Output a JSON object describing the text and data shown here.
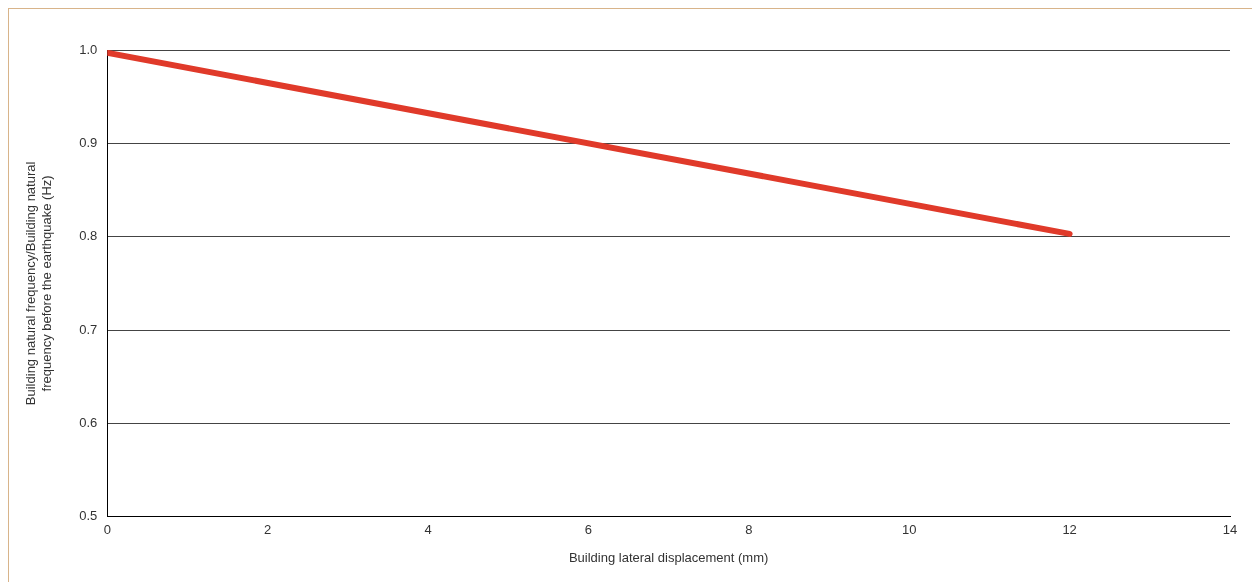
{
  "chart_data": {
    "type": "line",
    "xlabel": "Building lateral displacement (mm)",
    "ylabel": "Building natural frequency/Building natural frequency before the earthquake (Hz)",
    "x": [
      0,
      12
    ],
    "series": [
      {
        "color": "#e03a2a",
        "values": [
          0.997,
          0.803
        ]
      }
    ],
    "xlim": [
      0,
      14
    ],
    "xticks": [
      0,
      2,
      4,
      6,
      8,
      10,
      12,
      14
    ],
    "ylim": [
      0.5,
      1.0
    ],
    "yticks": [
      {
        "value": 0.5,
        "label": "0.5"
      },
      {
        "value": 0.6,
        "label": "0.6"
      },
      {
        "value": 0.7,
        "label": "0.7"
      },
      {
        "value": 0.8,
        "label": "0.8"
      },
      {
        "value": 0.9,
        "label": "0.9"
      },
      {
        "value": 1.0,
        "label": "1.0"
      }
    ],
    "grid": "y",
    "legend": false,
    "marker": "none",
    "line_style": "solid"
  }
}
